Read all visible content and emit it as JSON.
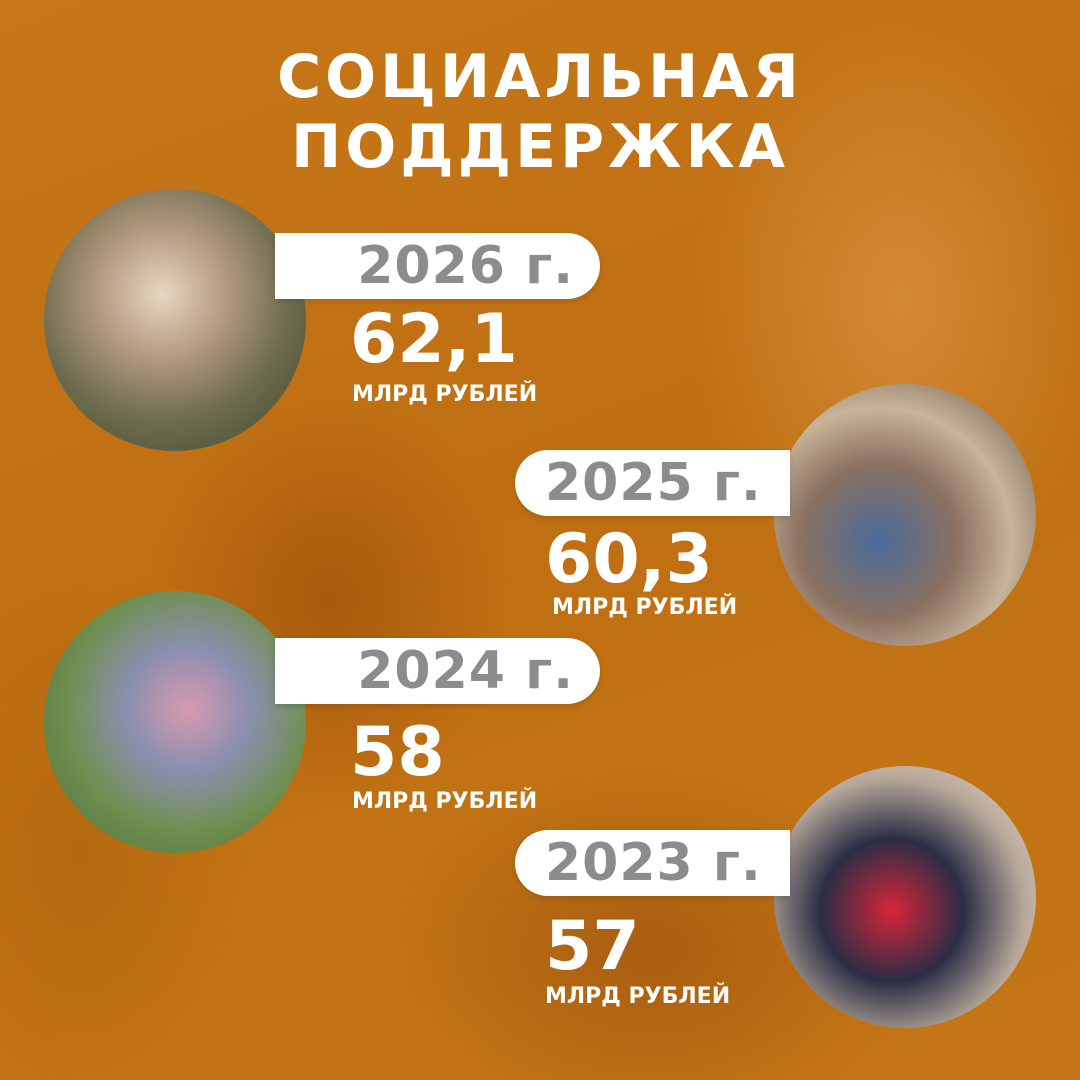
{
  "title": {
    "line1": "СОЦИАЛЬНАЯ",
    "line2": "ПОДДЕРЖКА"
  },
  "items": [
    {
      "year": "2026 г.",
      "value": "62,1",
      "unit": "МЛРД РУБЛЕЙ",
      "photo": "family-photo"
    },
    {
      "year": "2025 г.",
      "value": "60,3",
      "unit": "МЛРД РУБЛЕЙ",
      "photo": "painting-class-photo"
    },
    {
      "year": "2024 г.",
      "value": "58",
      "unit": "МЛРД РУБЛЕЙ",
      "photo": "wheelchair-walk-photo"
    },
    {
      "year": "2023 г.",
      "value": "57",
      "unit": "МЛРД РУБЛЕЙ",
      "photo": "women-event-photo"
    }
  ],
  "colors": {
    "background": "#c47616",
    "pill": "#ffffff",
    "year_text": "#8c8c8c",
    "text": "#ffffff"
  }
}
